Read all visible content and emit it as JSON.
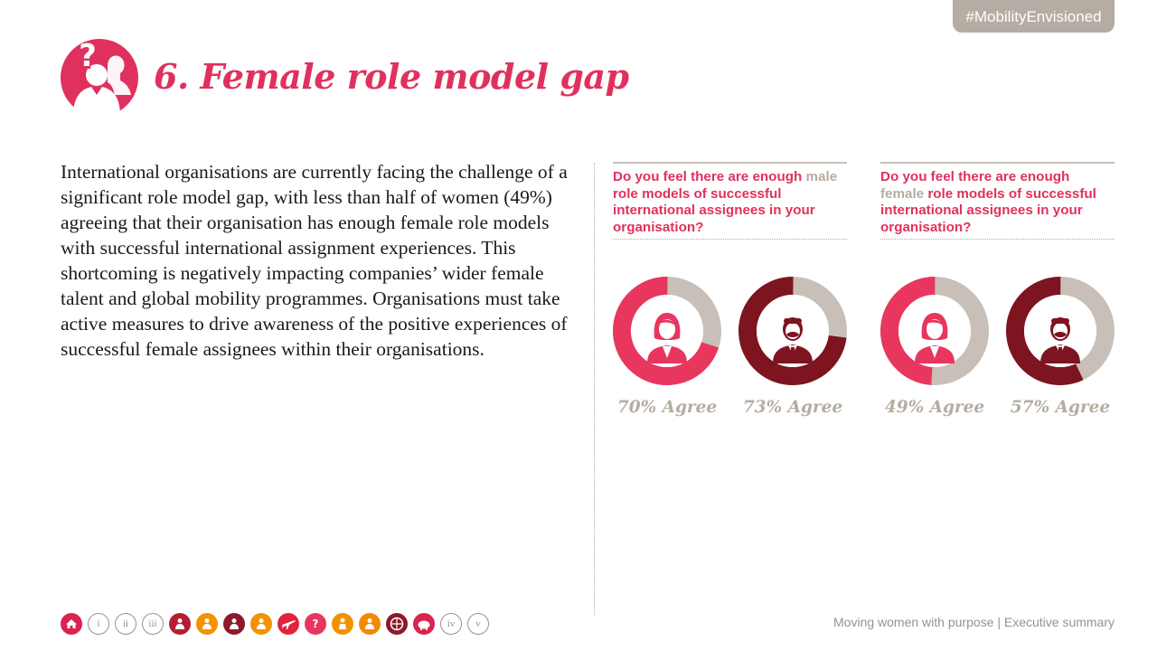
{
  "hashtag": "#MobilityEnvisioned",
  "title": "6. Female role model gap",
  "body_text": "International organisations are currently facing the challenge of a significant role model gap, with less than half of women (49%) agreeing that their organisation has enough female role models with successful international assignment experiences.  This shortcoming is negatively impacting companies’ wider female talent and global mobility programmes. Organisations must take active measures to drive awareness of the positive experiences of successful female assignees within their organisations.",
  "questions": [
    {
      "prefix": "Do you feel there are enough",
      "highlight": "male",
      "suffix": "role models of successful international assignees in your organisation?",
      "results": [
        {
          "label": "70% Agree",
          "value": 70,
          "figure": "female-figure-icon",
          "color": "#e8365f"
        },
        {
          "label": "73% Agree",
          "value": 73,
          "figure": "male-figure-icon",
          "color": "#7d1420"
        }
      ]
    },
    {
      "prefix": "Do you feel there are enough",
      "highlight": "female",
      "suffix": "role models of successful international assignees in your organisation?",
      "results": [
        {
          "label": "49% Agree",
          "value": 49,
          "figure": "female-figure-icon",
          "color": "#e8365f"
        },
        {
          "label": "57% Agree",
          "value": 57,
          "figure": "male-figure-icon",
          "color": "#7d1420"
        }
      ]
    }
  ],
  "nav": {
    "items": [
      {
        "name": "home-icon",
        "kind": "icon",
        "color": "#d9244f"
      },
      {
        "name": "nav-i",
        "kind": "roman",
        "label": "i"
      },
      {
        "name": "nav-ii",
        "kind": "roman",
        "label": "ii"
      },
      {
        "name": "nav-iii",
        "kind": "roman",
        "label": "iii"
      },
      {
        "name": "hands-raised-icon",
        "kind": "icon",
        "color": "#b51d33"
      },
      {
        "name": "running-person-icon",
        "kind": "icon",
        "color": "#f39200"
      },
      {
        "name": "person-badge-icon",
        "kind": "icon",
        "color": "#8b1a2b"
      },
      {
        "name": "people-network-icon",
        "kind": "icon",
        "color": "#f39200"
      },
      {
        "name": "airplane-icon",
        "kind": "icon",
        "color": "#e2233d"
      },
      {
        "name": "role-model-question-icon",
        "kind": "icon",
        "color": "#e8365f"
      },
      {
        "name": "person-podium-icon",
        "kind": "icon",
        "color": "#f39200"
      },
      {
        "name": "group-people-icon",
        "kind": "icon",
        "color": "#f08a00"
      },
      {
        "name": "globe-network-icon",
        "kind": "icon",
        "color": "#8b1a2b"
      },
      {
        "name": "piggy-bank-icon",
        "kind": "icon",
        "color": "#d9244f"
      },
      {
        "name": "nav-iv",
        "kind": "roman",
        "label": "iv"
      },
      {
        "name": "nav-v",
        "kind": "roman",
        "label": "v"
      }
    ]
  },
  "footer": "Moving women with purpose | Executive summary",
  "colors": {
    "accent": "#e0315e",
    "female": "#e8365f",
    "male": "#7d1420",
    "track": "#c8c0b8",
    "muted": "#b5aca3"
  }
}
